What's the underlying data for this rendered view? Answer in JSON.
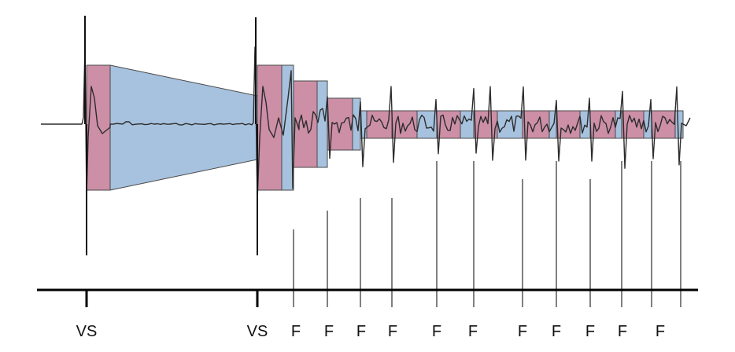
{
  "colors": {
    "background": "#ffffff",
    "pink": "#cc8fa6",
    "blue": "#a7c2de",
    "box_stroke": "#4a4a4a",
    "trace": "#2c2c2c",
    "baseline": "#000000",
    "tick": "#000000"
  },
  "labels": {
    "vs1": "VS",
    "vs2": "VS",
    "f1": "F",
    "f2": "F",
    "f3": "F",
    "f4": "F",
    "f5": "F",
    "f6": "F",
    "f7": "F",
    "f8": "F",
    "f9": "F",
    "f10": "F",
    "f11": "F"
  }
}
